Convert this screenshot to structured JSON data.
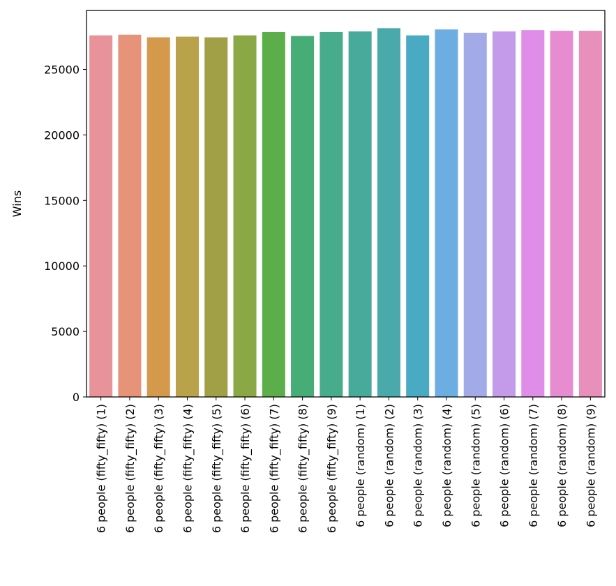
{
  "chart_data": {
    "type": "bar",
    "title": "",
    "xlabel": "",
    "ylabel": "Wins",
    "ylim": [
      0,
      29500
    ],
    "yticks": [
      0,
      5000,
      10000,
      15000,
      20000,
      25000
    ],
    "grid": false,
    "categories": [
      "6 people (fifty_fifty) (1)",
      "6 people (fifty_fifty) (2)",
      "6 people (fifty_fifty) (3)",
      "6 people (fifty_fifty) (4)",
      "6 people (fifty_fifty) (5)",
      "6 people (fifty_fifty) (6)",
      "6 people (fifty_fifty) (7)",
      "6 people (fifty_fifty) (8)",
      "6 people (fifty_fifty) (9)",
      "6 people (random) (1)",
      "6 people (random) (2)",
      "6 people (random) (3)",
      "6 people (random) (4)",
      "6 people (random) (5)",
      "6 people (random) (6)",
      "6 people (random) (7)",
      "6 people (random) (8)",
      "6 people (random) (9)"
    ],
    "values": [
      27600,
      27650,
      27450,
      27500,
      27450,
      27600,
      27850,
      27550,
      27850,
      27900,
      28150,
      27600,
      28050,
      27800,
      27900,
      28000,
      27950,
      27950
    ],
    "colors": [
      "#e8939a",
      "#e7937a",
      "#d4994a",
      "#b9a249",
      "#a2a046",
      "#8ba847",
      "#5bae4a",
      "#47ad76",
      "#47ac8c",
      "#48aa9b",
      "#4aa9aa",
      "#4aaac4",
      "#6daee2",
      "#a2abe8",
      "#c49beb",
      "#df8de9",
      "#e78cd1",
      "#e890bb"
    ]
  }
}
